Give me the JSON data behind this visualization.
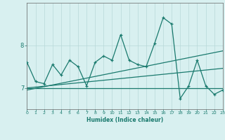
{
  "xlabel": "Humidex (Indice chaleur)",
  "x": [
    0,
    1,
    2,
    3,
    4,
    5,
    6,
    7,
    8,
    9,
    10,
    11,
    12,
    13,
    14,
    15,
    16,
    17,
    18,
    19,
    20,
    21,
    22,
    23
  ],
  "y_main": [
    7.6,
    7.15,
    7.1,
    7.55,
    7.3,
    7.65,
    7.5,
    7.05,
    7.6,
    7.75,
    7.65,
    8.25,
    7.65,
    7.55,
    7.5,
    8.05,
    8.65,
    8.5,
    6.75,
    7.05,
    7.65,
    7.05,
    6.85,
    6.95
  ],
  "y_trend1": [
    7.0,
    7.0,
    7.0,
    7.0,
    7.0,
    7.0,
    7.0,
    7.0,
    7.0,
    7.0,
    7.0,
    7.0,
    7.0,
    7.0,
    7.0,
    7.0,
    7.0,
    7.0,
    7.0,
    7.0,
    7.0,
    7.0,
    7.0,
    7.0
  ],
  "y_trend2": [
    7.0,
    7.02,
    7.04,
    7.06,
    7.08,
    7.1,
    7.12,
    7.14,
    7.16,
    7.18,
    7.2,
    7.22,
    7.24,
    7.26,
    7.28,
    7.3,
    7.32,
    7.34,
    7.36,
    7.38,
    7.4,
    7.42,
    7.44,
    7.46
  ],
  "y_trend3": [
    6.95,
    6.99,
    7.03,
    7.07,
    7.11,
    7.15,
    7.19,
    7.23,
    7.27,
    7.31,
    7.35,
    7.39,
    7.43,
    7.47,
    7.51,
    7.55,
    7.59,
    7.63,
    7.67,
    7.71,
    7.75,
    7.79,
    7.83,
    7.87
  ],
  "main_color": "#1a7a6e",
  "trend_color": "#1a7a6e",
  "bg_color": "#d8f0f0",
  "grid_color": "#b8d8d8",
  "ylim": [
    6.5,
    9.0
  ],
  "yticks": [
    7,
    8
  ],
  "xlim": [
    0,
    23
  ],
  "xticks": [
    0,
    1,
    2,
    3,
    4,
    5,
    6,
    7,
    8,
    9,
    10,
    11,
    12,
    13,
    14,
    15,
    16,
    17,
    18,
    19,
    20,
    21,
    22,
    23
  ]
}
